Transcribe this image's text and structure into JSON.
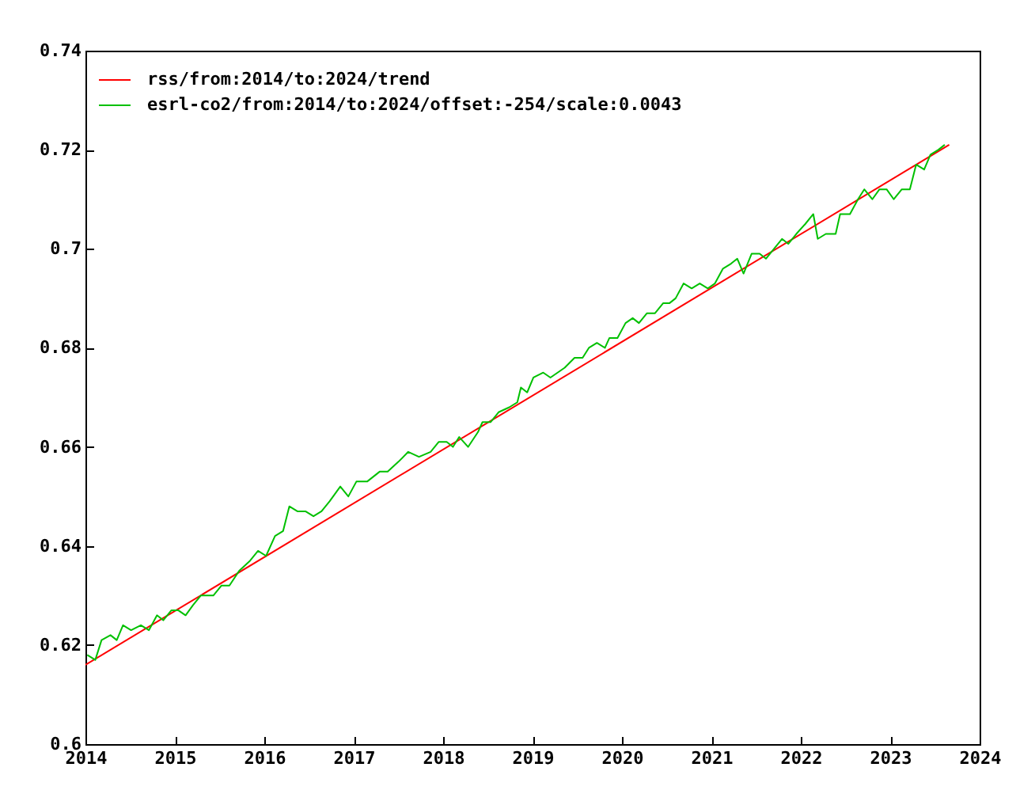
{
  "chart_data": {
    "type": "line",
    "xlim": [
      2014,
      2024
    ],
    "ylim": [
      0.6,
      0.74
    ],
    "xticks": [
      2014,
      2015,
      2016,
      2017,
      2018,
      2019,
      2020,
      2021,
      2022,
      2023,
      2024
    ],
    "yticks": [
      0.6,
      0.62,
      0.64,
      0.66,
      0.68,
      0.7,
      0.72,
      0.74
    ],
    "legend": "top left",
    "series": [
      {
        "name": "rss/from:2014/to:2024/trend",
        "color": "#ff0000",
        "x": [
          2014,
          2023.66
        ],
        "values": [
          0.616,
          0.721
        ]
      },
      {
        "name": "esrl-co2/from:2014/to:2024/offset:-254/scale:0.0043",
        "color": "#00c000",
        "x": [
          2014.02,
          2014.11,
          2014.18,
          2014.28,
          2014.35,
          2014.42,
          2014.51,
          2014.62,
          2014.71,
          2014.8,
          2014.87,
          2014.96,
          2015.04,
          2015.12,
          2015.2,
          2015.29,
          2015.43,
          2015.52,
          2015.61,
          2015.72,
          2015.84,
          2015.93,
          2016.02,
          2016.12,
          2016.21,
          2016.28,
          2016.37,
          2016.46,
          2016.55,
          2016.64,
          2016.73,
          2016.85,
          2016.94,
          2017.03,
          2017.15,
          2017.29,
          2017.38,
          2017.5,
          2017.61,
          2017.73,
          2017.86,
          2017.95,
          2018.04,
          2018.11,
          2018.18,
          2018.28,
          2018.39,
          2018.44,
          2018.53,
          2018.62,
          2018.74,
          2018.83,
          2018.87,
          2018.94,
          2019.01,
          2019.12,
          2019.2,
          2019.36,
          2019.47,
          2019.56,
          2019.63,
          2019.72,
          2019.81,
          2019.86,
          2019.95,
          2020.04,
          2020.12,
          2020.19,
          2020.28,
          2020.37,
          2020.46,
          2020.53,
          2020.6,
          2020.69,
          2020.78,
          2020.87,
          2020.96,
          2021.04,
          2021.13,
          2021.22,
          2021.29,
          2021.36,
          2021.45,
          2021.54,
          2021.61,
          2021.7,
          2021.79,
          2021.86,
          2021.95,
          2022.05,
          2022.14,
          2022.19,
          2022.28,
          2022.39,
          2022.44,
          2022.55,
          2022.64,
          2022.71,
          2022.8,
          2022.88,
          2022.96,
          2023.04,
          2023.13,
          2023.22,
          2023.29,
          2023.38,
          2023.45,
          2023.54,
          2023.61
        ],
        "values": [
          0.618,
          0.617,
          0.621,
          0.622,
          0.621,
          0.624,
          0.623,
          0.624,
          0.623,
          0.626,
          0.625,
          0.627,
          0.627,
          0.626,
          0.628,
          0.63,
          0.63,
          0.632,
          0.632,
          0.635,
          0.637,
          0.639,
          0.638,
          0.642,
          0.643,
          0.648,
          0.647,
          0.647,
          0.646,
          0.647,
          0.649,
          0.652,
          0.65,
          0.653,
          0.653,
          0.655,
          0.655,
          0.657,
          0.659,
          0.658,
          0.659,
          0.661,
          0.661,
          0.66,
          0.662,
          0.66,
          0.663,
          0.665,
          0.665,
          0.667,
          0.668,
          0.669,
          0.672,
          0.671,
          0.674,
          0.675,
          0.674,
          0.676,
          0.678,
          0.678,
          0.68,
          0.681,
          0.68,
          0.682,
          0.682,
          0.685,
          0.686,
          0.685,
          0.687,
          0.687,
          0.689,
          0.689,
          0.69,
          0.693,
          0.692,
          0.693,
          0.692,
          0.693,
          0.696,
          0.697,
          0.698,
          0.695,
          0.699,
          0.699,
          0.698,
          0.7,
          0.702,
          0.701,
          0.703,
          0.705,
          0.707,
          0.702,
          0.703,
          0.703,
          0.707,
          0.707,
          0.71,
          0.712,
          0.71,
          0.712,
          0.712,
          0.71,
          0.712,
          0.712,
          0.717,
          0.716,
          0.719,
          0.72,
          0.721
        ]
      }
    ]
  }
}
